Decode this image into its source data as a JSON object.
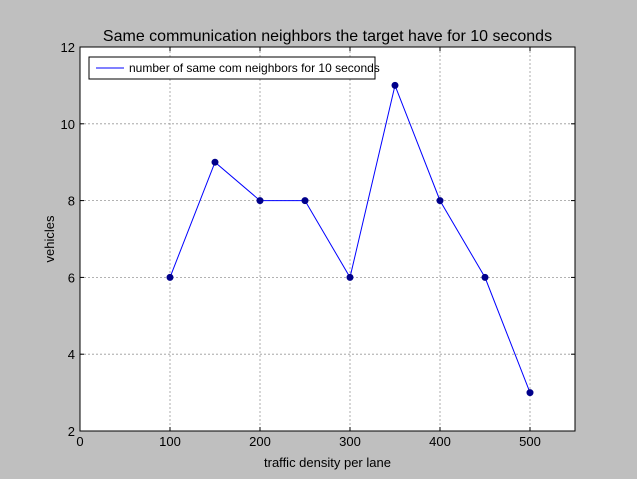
{
  "chart_data": {
    "type": "line",
    "title": "Same communication neighbors the target have for 10 seconds",
    "xlabel": "traffic density per lane",
    "ylabel": "vehicles",
    "xlim": [
      0,
      550
    ],
    "ylim": [
      2,
      12
    ],
    "xticks": [
      0,
      100,
      200,
      300,
      400,
      500
    ],
    "yticks": [
      2,
      4,
      6,
      8,
      10,
      12
    ],
    "grid": true,
    "legend_position": "top-left",
    "series": [
      {
        "name": "number of same com neighbors for 10 seconds",
        "color": "#0000ff",
        "marker_color": "#00008b",
        "x": [
          100,
          150,
          200,
          250,
          300,
          350,
          400,
          450,
          500
        ],
        "y": [
          6,
          9,
          8,
          8,
          6,
          11,
          8,
          6,
          3
        ]
      }
    ]
  },
  "colors": {
    "background": "#bfbfbf",
    "plot_area": "#ffffff",
    "grid": "#999999"
  }
}
